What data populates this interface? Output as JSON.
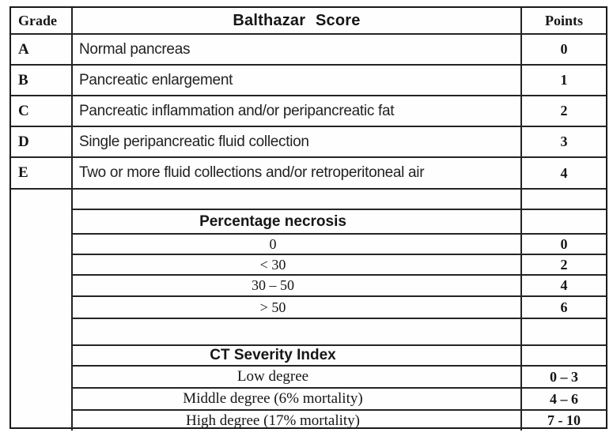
{
  "table": {
    "header": {
      "grade_label": "Grade",
      "title": "Balthazar Score",
      "points_label": "Points"
    },
    "balthazar_rows": [
      {
        "grade": "A",
        "finding": "Normal pancreas",
        "points": "0"
      },
      {
        "grade": "B",
        "finding": "Pancreatic enlargement",
        "points": "1"
      },
      {
        "grade": "C",
        "finding": "Pancreatic inflammation and/or peripancreatic fat",
        "points": "2"
      },
      {
        "grade": "D",
        "finding": "Single peripancreatic fluid collection",
        "points": "3"
      },
      {
        "grade": "E",
        "finding": "Two or more fluid collections and/or retroperitoneal air",
        "points": "4"
      }
    ],
    "necrosis": {
      "title": "Percentage necrosis",
      "rows": [
        {
          "label": "0",
          "points": "0"
        },
        {
          "label": "< 30",
          "points": "2"
        },
        {
          "label": "30 – 50",
          "points": "4"
        },
        {
          "label": "> 50",
          "points": "6"
        }
      ]
    },
    "severity": {
      "title": "CT Severity Index",
      "rows": [
        {
          "label": "Low degree",
          "points": "0 – 3"
        },
        {
          "label": "Middle degree (6% mortality)",
          "points": "4 – 6"
        },
        {
          "label": "High degree (17% mortality)",
          "points": "7 - 10"
        }
      ]
    }
  },
  "colors": {
    "text": "#161616",
    "line": "#242424",
    "background": "#ffffff"
  }
}
